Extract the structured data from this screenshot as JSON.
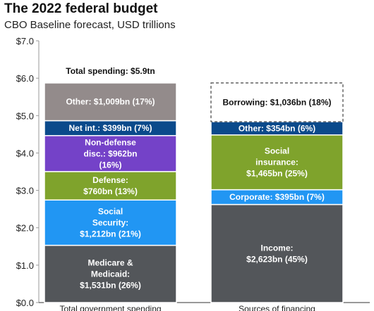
{
  "header": {
    "title": "The 2022 federal budget",
    "subtitle": "CBO Baseline forecast, USD trillions"
  },
  "chart_data": {
    "type": "bar",
    "stacked": true,
    "title": "The 2022 federal budget",
    "subtitle": "CBO Baseline forecast, USD trillions",
    "ylim": [
      0,
      7
    ],
    "y_ticks": [
      "$0.0",
      "$1.0",
      "$2.0",
      "$3.0",
      "$4.0",
      "$5.0",
      "$6.0",
      "$7.0"
    ],
    "grid": false,
    "legend": "none",
    "categories": [
      "Total government spending",
      "Sources of financing"
    ],
    "total_annotation": "Total spending: $5.9tn",
    "stacks": [
      {
        "category": "Total government spending",
        "segments": [
          {
            "name": "Medicare & Medicaid",
            "value": 1.531,
            "label": [
              "Medicare &",
              "Medicaid:",
              "$1,531bn (26%)"
            ],
            "color": "#53565a"
          },
          {
            "name": "Social Security",
            "value": 1.212,
            "label": [
              "Social",
              "Security:",
              "$1,212bn (21%)"
            ],
            "color": "#2196f3"
          },
          {
            "name": "Defense",
            "value": 0.76,
            "label": [
              "Defense:",
              "$760bn (13%)"
            ],
            "color": "#7fa32c"
          },
          {
            "name": "Non-defense disc.",
            "value": 0.962,
            "label": [
              "Non-defense",
              "disc.: $962bn",
              "(16%)"
            ],
            "color": "#7442c8"
          },
          {
            "name": "Net int.",
            "value": 0.399,
            "label": [
              "Net int.: $399bn (7%)"
            ],
            "color": "#0b4a8b"
          },
          {
            "name": "Other",
            "value": 1.009,
            "label": [
              "Other: $1,009bn (17%)"
            ],
            "color": "#938b8b"
          }
        ]
      },
      {
        "category": "Sources of financing",
        "segments": [
          {
            "name": "Income",
            "value": 2.623,
            "label": [
              "Income:",
              "$2,623bn (45%)"
            ],
            "color": "#53565a"
          },
          {
            "name": "Corporate",
            "value": 0.395,
            "label": [
              "Corporate: $395bn (7%)"
            ],
            "color": "#2196f3"
          },
          {
            "name": "Social insurance",
            "value": 1.465,
            "label": [
              "Social",
              "insurance:",
              "$1,465bn (25%)"
            ],
            "color": "#7fa32c"
          },
          {
            "name": "Other",
            "value": 0.354,
            "label": [
              "Other: $354bn (6%)"
            ],
            "color": "#0b4a8b"
          },
          {
            "name": "Borrowing",
            "value": 1.036,
            "label": [
              "Borrowing: $1,036bn (18%)"
            ],
            "color": "#ffffff",
            "dashed": true
          }
        ]
      }
    ]
  }
}
